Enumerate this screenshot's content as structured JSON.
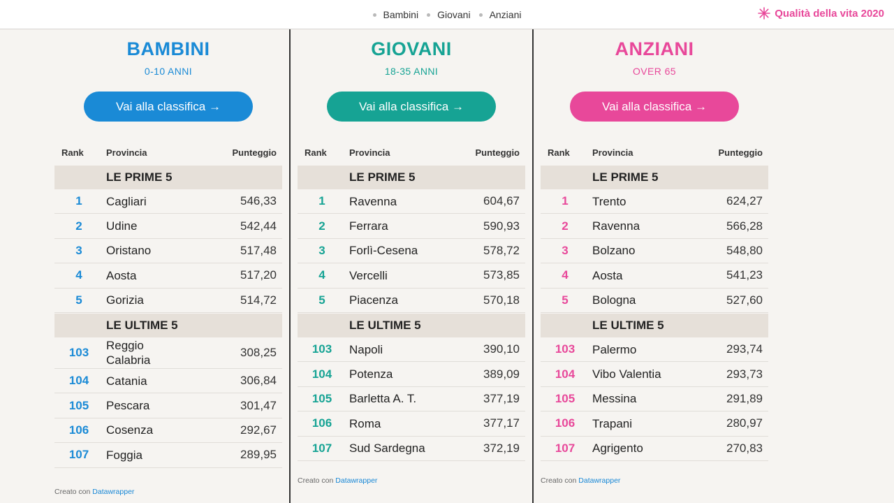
{
  "nav": {
    "items": [
      "Bambini",
      "Giovani",
      "Anziani"
    ],
    "brand": "Qualità della vita 2020",
    "brand_color": "#e8489a"
  },
  "table_headers": {
    "rank": "Rank",
    "provincia": "Provincia",
    "punteggio": "Punteggio"
  },
  "sections": {
    "top": "LE PRIME 5",
    "bottom": "LE ULTIME 5"
  },
  "button_label": "Vai alla classifica →",
  "credit": {
    "prefix": "Creato con",
    "link": "Datawrapper"
  },
  "panels": [
    {
      "title": "BAMBINI",
      "subtitle": "0-10 ANNI",
      "color": "#1a8ad6",
      "top": [
        {
          "rank": "1",
          "name": "Cagliari",
          "score": "546,33"
        },
        {
          "rank": "2",
          "name": "Udine",
          "score": "542,44"
        },
        {
          "rank": "3",
          "name": "Oristano",
          "score": "517,48"
        },
        {
          "rank": "4",
          "name": "Aosta",
          "score": "517,20"
        },
        {
          "rank": "5",
          "name": "Gorizia",
          "score": "514,72"
        }
      ],
      "bottom": [
        {
          "rank": "103",
          "name": "Reggio Calabria",
          "score": "308,25"
        },
        {
          "rank": "104",
          "name": "Catania",
          "score": "306,84"
        },
        {
          "rank": "105",
          "name": "Pescara",
          "score": "301,47"
        },
        {
          "rank": "106",
          "name": "Cosenza",
          "score": "292,67"
        },
        {
          "rank": "107",
          "name": "Foggia",
          "score": "289,95"
        }
      ]
    },
    {
      "title": "GIOVANI",
      "subtitle": "18-35 ANNI",
      "color": "#16a394",
      "top": [
        {
          "rank": "1",
          "name": "Ravenna",
          "score": "604,67"
        },
        {
          "rank": "2",
          "name": "Ferrara",
          "score": "590,93"
        },
        {
          "rank": "3",
          "name": "Forlì-Cesena",
          "score": "578,72"
        },
        {
          "rank": "4",
          "name": "Vercelli",
          "score": "573,85"
        },
        {
          "rank": "5",
          "name": "Piacenza",
          "score": "570,18"
        }
      ],
      "bottom": [
        {
          "rank": "103",
          "name": "Napoli",
          "score": "390,10"
        },
        {
          "rank": "104",
          "name": "Potenza",
          "score": "389,09"
        },
        {
          "rank": "105",
          "name": "Barletta A. T.",
          "score": "377,19"
        },
        {
          "rank": "106",
          "name": "Roma",
          "score": "377,17"
        },
        {
          "rank": "107",
          "name": "Sud Sardegna",
          "score": "372,19"
        }
      ]
    },
    {
      "title": "ANZIANI",
      "subtitle": "OVER 65",
      "color": "#e8489a",
      "top": [
        {
          "rank": "1",
          "name": "Trento",
          "score": "624,27"
        },
        {
          "rank": "2",
          "name": "Ravenna",
          "score": "566,28"
        },
        {
          "rank": "3",
          "name": "Bolzano",
          "score": "548,80"
        },
        {
          "rank": "4",
          "name": "Aosta",
          "score": "541,23"
        },
        {
          "rank": "5",
          "name": "Bologna",
          "score": "527,60"
        }
      ],
      "bottom": [
        {
          "rank": "103",
          "name": "Palermo",
          "score": "293,74"
        },
        {
          "rank": "104",
          "name": "Vibo Valentia",
          "score": "293,73"
        },
        {
          "rank": "105",
          "name": "Messina",
          "score": "291,89"
        },
        {
          "rank": "106",
          "name": "Trapani",
          "score": "280,97"
        },
        {
          "rank": "107",
          "name": "Agrigento",
          "score": "270,83"
        }
      ]
    }
  ]
}
